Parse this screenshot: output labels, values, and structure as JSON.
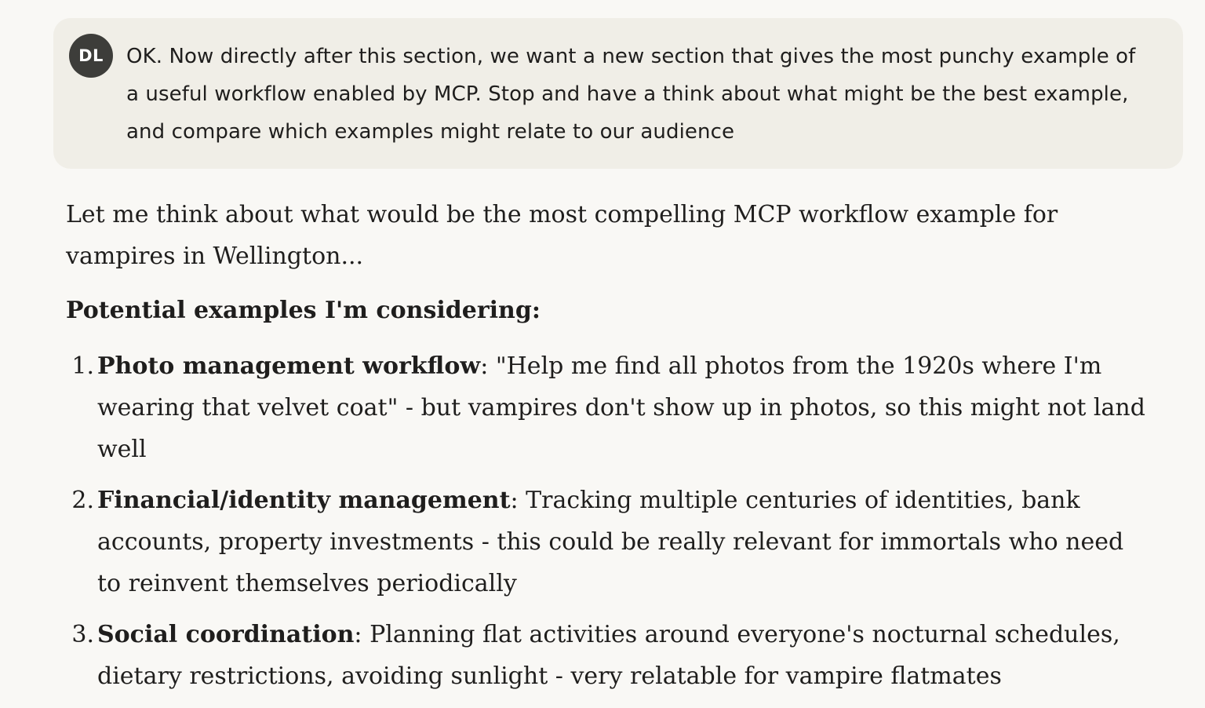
{
  "user_message": {
    "avatar_initials": "DL",
    "text": "OK. Now directly after this section, we want a new section that gives the most punchy example of a useful workflow enabled by MCP. Stop and have a think about what might be the best example, and compare which examples might relate to our audience"
  },
  "assistant_message": {
    "intro": "Let me think about what would be the most compelling MCP workflow example for vampires in Wellington...",
    "heading": "Potential examples I'm considering:",
    "examples": [
      {
        "number": "1.",
        "title": "Photo management workflow",
        "separator": ":",
        "body": " \"Help me find all photos from the 1920s where I'm wearing that velvet coat\" - but vampires don't show up in photos, so this might not land well"
      },
      {
        "number": "2.",
        "title": "Financial/identity management",
        "separator": ":",
        "body": " Tracking multiple centuries of identities, bank accounts, property investments - this could be really relevant for immortals who need to reinvent themselves periodically"
      },
      {
        "number": "3.",
        "title": "Social coordination",
        "separator": ":",
        "body": " Planning flat activities around everyone's nocturnal schedules, dietary restrictions, avoiding sunlight - very relatable for vampire flatmates"
      }
    ]
  }
}
